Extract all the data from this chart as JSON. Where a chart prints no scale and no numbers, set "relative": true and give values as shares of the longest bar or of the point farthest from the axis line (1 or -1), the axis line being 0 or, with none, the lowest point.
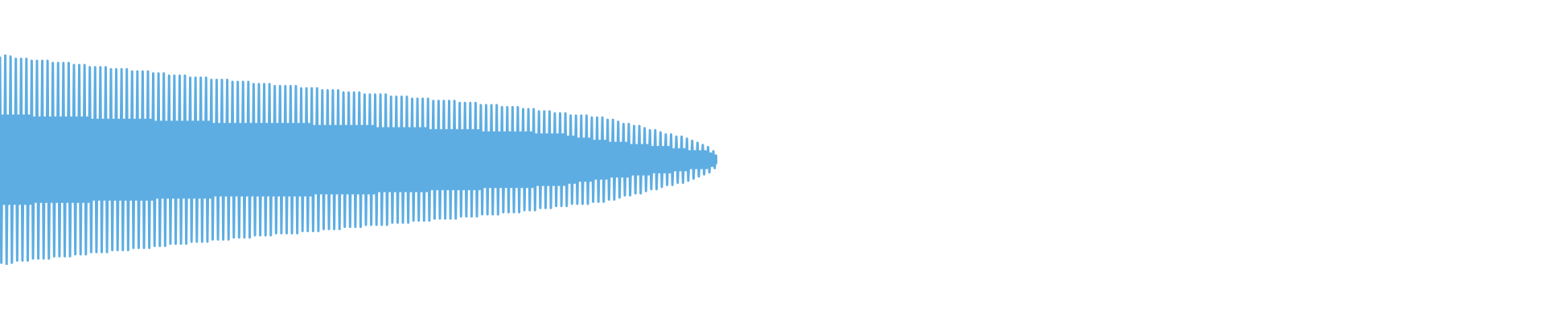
{
  "chart_data": {
    "type": "line",
    "relative": true,
    "color": "#5dade2",
    "categories": [
      null,
      null,
      null,
      null,
      null,
      null,
      null,
      null,
      null,
      null,
      null,
      null,
      null,
      null,
      null,
      null,
      null,
      null,
      null,
      null,
      null,
      null,
      null,
      null,
      null,
      null,
      null,
      null,
      null,
      null,
      null,
      null,
      null,
      null,
      null,
      null,
      null,
      null,
      null,
      null,
      null,
      null,
      null,
      null,
      null,
      null,
      null,
      null,
      null,
      null,
      null,
      null,
      null,
      null,
      null,
      null,
      null,
      null,
      null,
      null,
      null,
      null,
      null,
      null,
      null,
      null,
      null,
      null,
      null,
      null,
      null,
      null,
      null,
      null,
      null,
      null,
      null,
      null,
      null,
      null,
      null,
      null,
      null,
      null,
      null,
      null,
      null,
      null,
      null,
      null,
      null,
      null,
      null,
      null,
      null,
      null,
      null,
      null,
      null,
      null,
      null,
      null,
      null,
      null,
      null,
      null,
      null,
      null,
      null,
      null,
      null,
      null,
      null,
      null,
      null,
      null,
      null,
      null,
      null,
      null,
      null,
      null,
      null,
      null,
      null,
      null,
      null,
      null,
      null,
      null,
      null,
      null,
      null,
      null,
      null,
      null,
      null,
      null,
      null,
      null,
      null,
      null,
      null,
      null,
      null,
      null,
      null,
      null,
      null,
      null,
      null,
      null,
      null,
      null,
      null,
      null,
      null,
      null,
      null,
      null,
      null,
      null,
      null,
      null,
      null,
      null,
      null,
      null,
      null,
      null,
      null,
      null,
      null,
      null,
      null,
      null,
      null,
      null,
      null,
      null,
      null,
      null,
      null,
      null,
      null,
      null,
      null,
      null,
      null,
      null,
      null,
      null,
      null,
      null,
      null,
      null,
      null,
      null,
      null,
      null,
      null,
      null,
      null,
      null,
      null,
      null,
      null,
      null,
      null,
      null,
      null,
      null,
      null,
      null,
      null,
      null,
      null,
      null,
      null,
      null,
      null,
      null,
      null,
      null,
      null,
      null,
      null,
      null,
      null,
      null,
      null,
      null,
      null,
      null,
      null,
      null,
      null,
      null,
      null,
      null,
      null,
      null,
      null,
      null,
      null,
      null,
      null,
      null,
      null,
      null,
      null,
      null,
      null,
      null,
      null,
      null,
      null,
      null,
      null,
      null,
      null,
      null,
      null,
      null,
      null,
      null,
      null,
      null,
      null,
      null,
      null,
      null,
      null,
      null,
      null,
      null,
      null,
      null,
      null,
      null,
      null,
      null,
      null,
      null,
      null,
      null,
      null,
      null,
      null,
      null,
      null,
      null,
      null,
      null,
      null,
      null,
      null,
      null,
      null,
      null,
      null,
      null,
      null,
      null,
      null,
      null,
      null,
      null,
      null,
      null,
      null,
      null,
      null,
      null,
      null,
      null,
      null,
      null,
      null,
      null,
      null,
      null,
      null,
      null,
      null,
      null,
      null,
      null,
      null,
      null,
      null,
      null,
      null,
      null,
      null,
      null,
      null,
      null,
      null,
      null,
      null,
      null,
      null,
      null,
      null,
      null,
      null,
      null,
      null,
      null,
      null,
      null,
      null,
      null,
      null,
      null,
      null,
      null,
      null,
      null,
      null,
      null,
      null,
      null,
      null,
      null,
      null,
      null,
      null,
      null,
      null,
      null,
      null,
      null,
      null,
      null,
      null,
      null,
      null,
      null,
      null,
      null,
      null,
      null,
      null,
      null,
      null,
      null,
      null,
      null,
      null,
      null,
      null,
      null,
      null,
      null,
      null,
      null,
      null,
      null,
      null,
      null,
      null,
      null,
      null,
      null,
      null,
      null,
      null,
      null,
      null,
      null,
      null,
      null,
      null,
      null,
      null,
      null,
      null,
      null,
      null,
      null,
      null,
      null,
      null,
      null,
      null,
      null,
      null,
      null,
      null,
      null,
      null,
      null,
      null,
      null,
      null,
      null,
      null,
      null,
      null,
      null,
      null,
      null,
      null,
      null,
      null,
      null,
      null,
      null,
      null,
      null,
      null,
      null,
      null,
      null,
      null,
      null,
      null,
      null,
      null,
      null,
      null,
      null,
      null,
      null,
      null,
      null,
      null,
      null,
      null,
      null,
      null,
      null,
      null,
      null,
      null,
      null,
      null,
      null,
      null,
      null,
      null,
      null,
      null,
      null,
      null,
      null,
      null,
      null,
      null,
      null,
      null,
      null,
      null,
      null,
      null,
      null,
      null,
      null,
      null,
      null,
      null,
      null,
      null,
      null,
      null,
      null,
      null,
      null,
      null,
      null,
      null,
      null,
      null,
      null,
      null,
      null,
      null,
      null,
      null,
      null,
      null,
      null,
      null,
      null,
      null,
      null,
      null,
      null,
      null,
      null,
      null,
      null,
      null,
      null,
      null,
      null,
      null,
      null,
      null,
      null,
      null,
      null
    ],
    "values": [
      0.99,
      0.01,
      0.71,
      0.29,
      1,
      0,
      0.71,
      0.29,
      0.99,
      0.01,
      0.71,
      0.29,
      0.98,
      0.02,
      0.71,
      0.29,
      0.98,
      0.02,
      0.71,
      0.29,
      0.98,
      0.02,
      0.71,
      0.29,
      0.97,
      0.03,
      0.7,
      0.3,
      0.97,
      0.03,
      0.7,
      0.3,
      0.97,
      0.03,
      0.7,
      0.3,
      0.97,
      0.03,
      0.7,
      0.3,
      0.96,
      0.04,
      0.7,
      0.3,
      0.96,
      0.04,
      0.7,
      0.3,
      0.96,
      0.04,
      0.7,
      0.3,
      0.96,
      0.04,
      0.7,
      0.3,
      0.95,
      0.05,
      0.7,
      0.3,
      0.95,
      0.05,
      0.7,
      0.3,
      0.95,
      0.05,
      0.7,
      0.3,
      0.94,
      0.06,
      0.69,
      0.31,
      0.94,
      0.06,
      0.69,
      0.31,
      0.94,
      0.06,
      0.69,
      0.31,
      0.94,
      0.06,
      0.69,
      0.31,
      0.93,
      0.07,
      0.69,
      0.31,
      0.93,
      0.07,
      0.69,
      0.31,
      0.93,
      0.07,
      0.69,
      0.31,
      0.93,
      0.07,
      0.69,
      0.31,
      0.92,
      0.08,
      0.69,
      0.31,
      0.92,
      0.08,
      0.69,
      0.31,
      0.92,
      0.08,
      0.69,
      0.31,
      0.92,
      0.08,
      0.69,
      0.31,
      0.91,
      0.09,
      0.68,
      0.32,
      0.91,
      0.09,
      0.68,
      0.32,
      0.91,
      0.09,
      0.68,
      0.32,
      0.9,
      0.1,
      0.68,
      0.32,
      0.9,
      0.1,
      0.68,
      0.32,
      0.9,
      0.1,
      0.68,
      0.32,
      0.9,
      0.1,
      0.68,
      0.32,
      0.89,
      0.11,
      0.68,
      0.32,
      0.89,
      0.11,
      0.68,
      0.32,
      0.89,
      0.11,
      0.68,
      0.32,
      0.89,
      0.11,
      0.68,
      0.32,
      0.88,
      0.12,
      0.67,
      0.33,
      0.88,
      0.12,
      0.67,
      0.33,
      0.88,
      0.12,
      0.67,
      0.33,
      0.88,
      0.12,
      0.67,
      0.33,
      0.87,
      0.13,
      0.67,
      0.33,
      0.87,
      0.13,
      0.67,
      0.33,
      0.87,
      0.13,
      0.67,
      0.33,
      0.87,
      0.13,
      0.67,
      0.33,
      0.86,
      0.14,
      0.67,
      0.33,
      0.86,
      0.14,
      0.67,
      0.33,
      0.86,
      0.14,
      0.67,
      0.33,
      0.86,
      0.14,
      0.67,
      0.33,
      0.85,
      0.15,
      0.67,
      0.33,
      0.85,
      0.15,
      0.67,
      0.33,
      0.85,
      0.15,
      0.67,
      0.33,
      0.85,
      0.15,
      0.67,
      0.33,
      0.85,
      0.15,
      0.67,
      0.33,
      0.84,
      0.16,
      0.67,
      0.33,
      0.84,
      0.16,
      0.67,
      0.33,
      0.84,
      0.16,
      0.66,
      0.34,
      0.84,
      0.16,
      0.66,
      0.34,
      0.83,
      0.17,
      0.66,
      0.34,
      0.83,
      0.17,
      0.66,
      0.34,
      0.83,
      0.17,
      0.66,
      0.34,
      0.83,
      0.17,
      0.66,
      0.34,
      0.82,
      0.18,
      0.66,
      0.34,
      0.82,
      0.18,
      0.66,
      0.34,
      0.82,
      0.18,
      0.66,
      0.34,
      0.82,
      0.18,
      0.66,
      0.34,
      0.81,
      0.19,
      0.66,
      0.34,
      0.81,
      0.19,
      0.66,
      0.34,
      0.81,
      0.19,
      0.65,
      0.35,
      0.81,
      0.19,
      0.65,
      0.35,
      0.81,
      0.19,
      0.65,
      0.35,
      0.8,
      0.2,
      0.65,
      0.35,
      0.8,
      0.2,
      0.65,
      0.35,
      0.8,
      0.2,
      0.65,
      0.35,
      0.8,
      0.2,
      0.65,
      0.35,
      0.79,
      0.21,
      0.65,
      0.35,
      0.79,
      0.21,
      0.65,
      0.35,
      0.79,
      0.21,
      0.65,
      0.35,
      0.79,
      0.21,
      0.64,
      0.36,
      0.78,
      0.22,
      0.64,
      0.36,
      0.78,
      0.22,
      0.64,
      0.36,
      0.78,
      0.22,
      0.64,
      0.36,
      0.78,
      0.22,
      0.64,
      0.36,
      0.78,
      0.22,
      0.64,
      0.36,
      0.77,
      0.23,
      0.64,
      0.36,
      0.77,
      0.23,
      0.64,
      0.36,
      0.77,
      0.23,
      0.64,
      0.36,
      0.77,
      0.23,
      0.64,
      0.36,
      0.76,
      0.24,
      0.63,
      0.37,
      0.76,
      0.24,
      0.63,
      0.37,
      0.76,
      0.24,
      0.63,
      0.37,
      0.76,
      0.24,
      0.63,
      0.37,
      0.75,
      0.25,
      0.63,
      0.37,
      0.75,
      0.25,
      0.63,
      0.37,
      0.75,
      0.25,
      0.63,
      0.37,
      0.75,
      0.25,
      0.63,
      0.37,
      0.74,
      0.26,
      0.63,
      0.37,
      0.74,
      0.26,
      0.63,
      0.37,
      0.74,
      0.26,
      0.62,
      0.38,
      0.73,
      0.27,
      0.62,
      0.38,
      0.73,
      0.27,
      0.62,
      0.38,
      0.73,
      0.27,
      0.62,
      0.38,
      0.72,
      0.28,
      0.62,
      0.38,
      0.72,
      0.28,
      0.62,
      0.38,
      0.72,
      0.28,
      0.61,
      0.39,
      0.71,
      0.29,
      0.61,
      0.39,
      0.71,
      0.29,
      0.6,
      0.4,
      0.71,
      0.29,
      0.6,
      0.4,
      0.71,
      0.29,
      0.6,
      0.4,
      0.7,
      0.3,
      0.59,
      0.41,
      0.7,
      0.3,
      0.59,
      0.41,
      0.7,
      0.3,
      0.59,
      0.41,
      0.69,
      0.31,
      0.58,
      0.42,
      0.69,
      0.31,
      0.58,
      0.42,
      0.68,
      0.32,
      0.58,
      0.42,
      0.67,
      0.33,
      0.58,
      0.42,
      0.67,
      0.33,
      0.57,
      0.43,
      0.66,
      0.34,
      0.57,
      0.43,
      0.66,
      0.34,
      0.57,
      0.43,
      0.65,
      0.35,
      0.57,
      0.43,
      0.64,
      0.36,
      0.56,
      0.44,
      0.64,
      0.36,
      0.56,
      0.44,
      0.63,
      0.37,
      0.56,
      0.44,
      0.62,
      0.38,
      0.56,
      0.44,
      0.62,
      0.38,
      0.55,
      0.45,
      0.61,
      0.39,
      0.55,
      0.45,
      0.61,
      0.39,
      0.55,
      0.45,
      0.6,
      0.4,
      0.54,
      0.46,
      0.59,
      0.41,
      0.54,
      0.46,
      0.58,
      0.42,
      0.54,
      0.46,
      0.57,
      0.43,
      0.54,
      0.46,
      0.56,
      0.44,
      0.53,
      0.47,
      0.54,
      0.46,
      0.52,
      0.48
    ]
  }
}
